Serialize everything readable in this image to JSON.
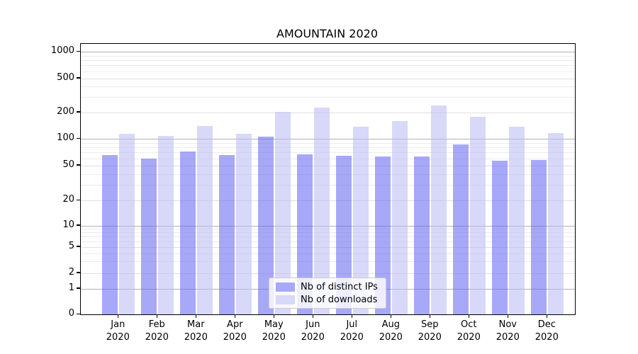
{
  "page": {
    "title": "AMOUNTAIN 2020"
  },
  "chart_data": {
    "type": "bar",
    "title": "AMOUNTAIN 2020",
    "categories": [
      "Jan 2020",
      "Feb 2020",
      "Mar 2020",
      "Apr 2020",
      "May 2020",
      "Jun 2020",
      "Jul 2020",
      "Aug 2020",
      "Sep 2020",
      "Oct 2020",
      "Nov 2020",
      "Dec 2020"
    ],
    "series": [
      {
        "name": "Nb of distinct IPs",
        "color": "#a8a8f8",
        "values": [
          66,
          60,
          72,
          65,
          105,
          67,
          64,
          63,
          63,
          87,
          56,
          57
        ]
      },
      {
        "name": "Nb of downloads",
        "color": "#d8d8f9",
        "values": [
          114,
          107,
          140,
          115,
          201,
          229,
          137,
          159,
          240,
          178,
          137,
          117
        ]
      }
    ],
    "xlabel": "",
    "ylabel": "",
    "y_scale": "symlog",
    "y_ticks": [
      0,
      1,
      2,
      5,
      10,
      20,
      50,
      100,
      200,
      500,
      1000
    ],
    "ylim": [
      0,
      1100
    ],
    "grid": "both",
    "legend_position": "lower center inside",
    "colors": {
      "grid_major": "#b2b2b2",
      "grid_mid": "#e0e0e0",
      "grid_minor": "#ececec",
      "axis_spine": "#000000",
      "legend_border": "#cccccc"
    }
  }
}
